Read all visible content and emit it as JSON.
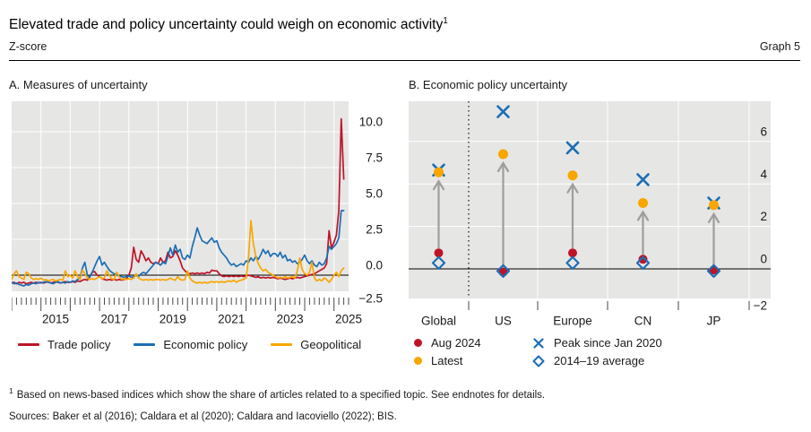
{
  "header": {
    "title": "Elevated trade and policy uncertainty could weigh on economic activity",
    "title_superscript": "1",
    "unit_label": "Z-score",
    "graph_label": "Graph 5"
  },
  "colors": {
    "red": "#be1428",
    "blue": "#1c6eb4",
    "yellow": "#f8a600",
    "plot_bg": "#e6e6e5",
    "gridline": "#ffffff",
    "zero_line": "#000000",
    "arrow_gray": "#9e9e9e",
    "tick": "#4a4a4a",
    "text": "#1a1a1a"
  },
  "footnote": {
    "marker": "1",
    "text": "Based on news-based indices which show the share of articles related to a specified topic. See endnotes for details."
  },
  "sources": "Sources: Baker et al (2016); Caldara et al (2020); Caldara and Iacoviello (2022); BIS.",
  "chart_data": [
    {
      "type": "line",
      "panel": "A",
      "title": "A. Measures of uncertainty",
      "x_start_year": 2014,
      "x_step_months": 1,
      "xlim": [
        2014,
        2025.5
      ],
      "ylim": [
        -1.15,
        12.1
      ],
      "zero_line": true,
      "grid": true,
      "y_ticks": [
        {
          "v": -2.5,
          "label": "−2.5"
        },
        {
          "v": 0.0,
          "label": "0.0"
        },
        {
          "v": 2.5,
          "label": "2.5"
        },
        {
          "v": 5.0,
          "label": "5.0"
        },
        {
          "v": 7.5,
          "label": "7.5"
        },
        {
          "v": 10.0,
          "label": "10.0"
        }
      ],
      "x_ticks": [
        {
          "year": 2015,
          "label": "2015"
        },
        {
          "year": 2017,
          "label": "2017"
        },
        {
          "year": 2019,
          "label": "2019"
        },
        {
          "year": 2021,
          "label": "2021"
        },
        {
          "year": 2023,
          "label": "2023"
        },
        {
          "year": 2025,
          "label": "2025"
        }
      ],
      "series": [
        {
          "name": "Trade policy",
          "color": "#be1428",
          "values": [
            -0.55,
            -0.5,
            -0.6,
            -0.5,
            -0.55,
            -0.5,
            -0.6,
            -0.55,
            -0.5,
            -0.55,
            -0.5,
            -0.55,
            -0.5,
            -0.55,
            -0.5,
            -0.45,
            -0.55,
            -0.5,
            -0.45,
            -0.5,
            -0.55,
            -0.5,
            -0.45,
            -0.5,
            -0.5,
            -0.45,
            -0.5,
            -0.4,
            -0.45,
            -0.35,
            -0.3,
            -0.35,
            -0.1,
            0.2,
            0.25,
            0.0,
            -0.1,
            -0.25,
            -0.3,
            -0.35,
            -0.3,
            -0.35,
            -0.3,
            -0.35,
            -0.3,
            -0.35,
            -0.3,
            -0.25,
            0.0,
            0.5,
            1.95,
            1.1,
            0.9,
            1.7,
            1.4,
            1.0,
            1.2,
            0.9,
            0.8,
            0.9,
            0.8,
            1.2,
            0.9,
            1.0,
            1.6,
            1.2,
            1.3,
            1.7,
            1.4,
            1.0,
            0.5,
            0.3,
            0.15,
            0.1,
            0.15,
            0.1,
            0.15,
            0.1,
            0.15,
            0.1,
            0.2,
            0.15,
            0.35,
            0.3,
            0.3,
            0.1,
            -0.05,
            -0.1,
            -0.05,
            -0.1,
            -0.05,
            -0.1,
            -0.05,
            -0.1,
            -0.05,
            -0.1,
            -0.05,
            0.0,
            -0.05,
            -0.1,
            -0.15,
            -0.1,
            -0.2,
            -0.15,
            -0.2,
            -0.15,
            -0.2,
            -0.15,
            -0.2,
            -0.25,
            -0.2,
            -0.25,
            -0.3,
            -0.25,
            -0.2,
            -0.25,
            -0.2,
            -0.15,
            -0.2,
            -0.15,
            -0.1,
            -0.05,
            0.0,
            0.05,
            0.1,
            0.2,
            0.3,
            0.4,
            0.5,
            0.8,
            3.1,
            1.9,
            2.3,
            2.8,
            4.5,
            10.9,
            6.7
          ]
        },
        {
          "name": "Economic policy",
          "color": "#1c6eb4",
          "values": [
            -0.5,
            -0.6,
            -0.55,
            -0.65,
            -0.7,
            -0.75,
            -0.65,
            -0.7,
            -0.6,
            -0.55,
            -0.6,
            -0.5,
            -0.55,
            -0.5,
            -0.45,
            -0.5,
            -0.55,
            -0.6,
            -0.5,
            -0.45,
            -0.55,
            -0.5,
            -0.55,
            -0.45,
            -0.5,
            -0.4,
            -0.45,
            -0.3,
            -0.2,
            0.5,
            0.9,
            0.0,
            -0.15,
            0.2,
            0.6,
            1.0,
            1.3,
            0.7,
            0.9,
            0.6,
            0.35,
            0.2,
            0.1,
            0.0,
            -0.05,
            -0.1,
            -0.15,
            -0.1,
            -0.05,
            -0.15,
            -0.1,
            0.0,
            -0.1,
            0.1,
            0.2,
            0.1,
            0.3,
            0.5,
            0.7,
            0.9,
            0.8,
            0.7,
            0.9,
            0.8,
            1.3,
            1.9,
            1.4,
            2.1,
            1.6,
            1.8,
            1.2,
            1.1,
            1.4,
            1.2,
            2.0,
            2.6,
            3.3,
            2.8,
            2.4,
            2.3,
            2.2,
            2.4,
            2.6,
            2.3,
            2.4,
            1.9,
            1.6,
            1.4,
            1.2,
            0.9,
            0.7,
            0.8,
            0.6,
            0.7,
            0.8,
            0.7,
            1.0,
            0.9,
            1.2,
            1.0,
            1.3,
            1.1,
            1.4,
            1.8,
            1.5,
            1.7,
            1.3,
            1.5,
            1.5,
            1.3,
            1.6,
            1.2,
            1.4,
            1.0,
            1.1,
            0.9,
            1.0,
            0.8,
            0.9,
            1.1,
            1.4,
            1.0,
            0.8,
            1.0,
            0.7,
            0.6,
            0.9,
            0.7,
            0.8,
            1.2,
            2.0,
            1.8,
            2.0,
            2.2,
            2.6,
            4.5,
            4.5
          ]
        },
        {
          "name": "Geopolitical",
          "color": "#f8a600",
          "values": [
            -0.3,
            0.1,
            0.3,
            -0.1,
            -0.2,
            -0.3,
            0.2,
            0.1,
            -0.2,
            -0.3,
            -0.25,
            -0.3,
            -0.2,
            -0.35,
            -0.3,
            -0.4,
            -0.35,
            -0.3,
            -0.4,
            -0.35,
            -0.3,
            -0.35,
            0.3,
            -0.1,
            0.0,
            -0.2,
            0.3,
            -0.1,
            -0.3,
            0.35,
            0.1,
            -0.2,
            -0.3,
            -0.25,
            -0.3,
            -0.2,
            -0.1,
            -0.25,
            -0.2,
            0.3,
            0.0,
            -0.25,
            -0.3,
            0.2,
            -0.1,
            -0.3,
            -0.25,
            -0.3,
            -0.25,
            -0.3,
            -0.2,
            0.1,
            -0.2,
            -0.3,
            -0.35,
            -0.3,
            -0.35,
            -0.3,
            -0.35,
            -0.3,
            -0.3,
            -0.35,
            -0.3,
            -0.35,
            -0.3,
            -0.2,
            -0.3,
            -0.35,
            -0.1,
            -0.3,
            -0.35,
            -0.3,
            0.3,
            -0.2,
            -0.4,
            -0.5,
            -0.55,
            -0.5,
            -0.55,
            -0.5,
            -0.55,
            -0.5,
            -0.45,
            -0.5,
            -0.45,
            -0.5,
            -0.45,
            -0.5,
            -0.45,
            -0.4,
            -0.45,
            -0.35,
            -0.5,
            -0.4,
            -0.35,
            -0.3,
            -0.2,
            1.2,
            3.8,
            2.2,
            1.3,
            0.8,
            0.5,
            0.3,
            0.4,
            0.2,
            0.1,
            0.0,
            -0.1,
            -0.2,
            -0.15,
            -0.2,
            -0.1,
            -0.2,
            -0.15,
            -0.1,
            -0.2,
            0.3,
            1.2,
            0.4,
            0.1,
            0.0,
            0.2,
            0.9,
            -0.2,
            -0.4,
            -0.3,
            -0.4,
            -0.2,
            -0.3,
            -0.5,
            -0.3,
            0.0,
            0.2,
            -0.1,
            0.3,
            0.5
          ]
        }
      ]
    },
    {
      "type": "scatter",
      "panel": "B",
      "title": "B. Economic policy uncertainty",
      "categories": [
        "Global",
        "US",
        "Europe",
        "CN",
        "JP"
      ],
      "ylim": [
        -1.4,
        7.9
      ],
      "zero_line": true,
      "grid": true,
      "separator_after_category": "Global",
      "y_ticks": [
        {
          "v": -2,
          "label": "−2"
        },
        {
          "v": 0,
          "label": "0"
        },
        {
          "v": 2,
          "label": "2"
        },
        {
          "v": 4,
          "label": "4"
        },
        {
          "v": 6,
          "label": "6"
        }
      ],
      "arrows": {
        "from_series": "Aug 2024",
        "to_series": "Latest"
      },
      "series": [
        {
          "name": "Aug 2024",
          "marker": "dot",
          "color": "#be1428",
          "values": [
            0.75,
            -0.15,
            0.75,
            0.45,
            -0.05
          ]
        },
        {
          "name": "Latest",
          "marker": "dot",
          "color": "#f8a600",
          "values": [
            4.55,
            5.4,
            4.4,
            3.1,
            3.0
          ]
        },
        {
          "name": "Peak since Jan 2020",
          "marker": "x",
          "color": "#1c6eb4",
          "values": [
            4.65,
            7.4,
            5.7,
            4.2,
            3.1
          ]
        },
        {
          "name": "2014–19 average",
          "marker": "diamond",
          "color": "#1c6eb4",
          "values": [
            0.28,
            -0.1,
            0.28,
            0.28,
            -0.1
          ]
        }
      ]
    }
  ]
}
